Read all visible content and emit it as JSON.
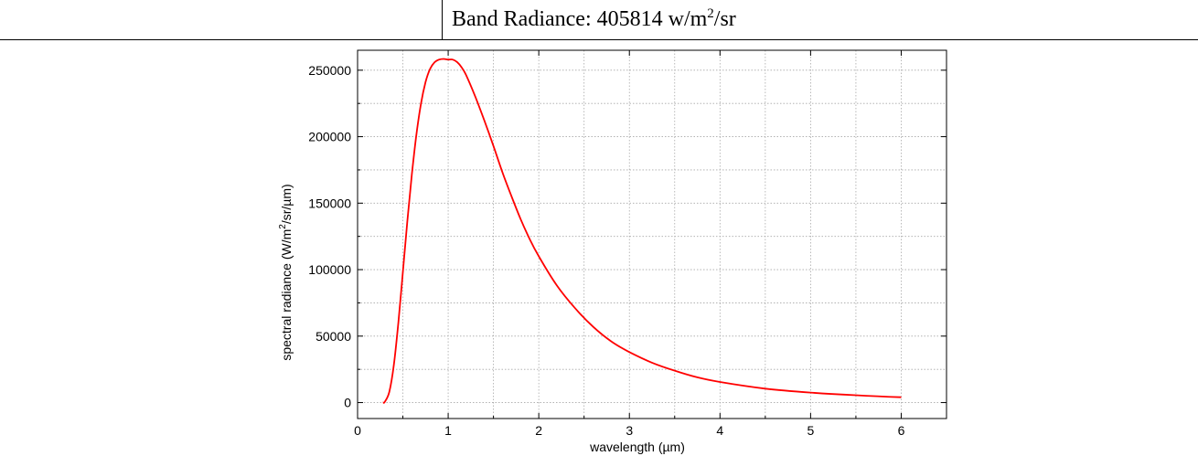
{
  "header": {
    "band_prefix": "Band Radiance: ",
    "band_value": "405814",
    "band_unit_before_sup": " w/m",
    "band_unit_sup": "2",
    "band_unit_after_sup": "/sr"
  },
  "chart_data": {
    "type": "line",
    "xlabel": "wavelength (µm)",
    "ylabel_parts": [
      "spectral radiance (W/m",
      "2",
      "/sr/µm)"
    ],
    "xlim": [
      0,
      6.5
    ],
    "ylim": [
      -12000,
      265000
    ],
    "xticks": [
      0,
      1,
      2,
      3,
      4,
      5,
      6
    ],
    "xtick_labels": [
      "0",
      "1",
      "2",
      "3",
      "4",
      "5",
      "6"
    ],
    "yticks": [
      0,
      50000,
      100000,
      150000,
      200000,
      250000
    ],
    "ytick_labels": [
      "0",
      "50000",
      "100000",
      "150000",
      "200000",
      "250000"
    ],
    "grid": true,
    "series": [
      {
        "color": "#ff0000",
        "x": [
          0.28,
          0.3,
          0.35,
          0.4,
          0.45,
          0.5,
          0.55,
          0.6,
          0.65,
          0.7,
          0.75,
          0.8,
          0.85,
          0.9,
          0.95,
          1.0,
          1.05,
          1.1,
          1.15,
          1.2,
          1.3,
          1.4,
          1.5,
          1.6,
          1.7,
          1.8,
          1.9,
          2.0,
          2.2,
          2.4,
          2.6,
          2.8,
          3.0,
          3.25,
          3.5,
          3.75,
          4.0,
          4.5,
          5.0,
          5.5,
          6.0
        ],
        "y": [
          0,
          500,
          8000,
          28000,
          60000,
          98000,
          137000,
          172000,
          202000,
          225000,
          241000,
          251000,
          256000,
          258000,
          258500,
          258000,
          258000,
          256000,
          252000,
          246000,
          230000,
          212000,
          193000,
          173000,
          155000,
          138000,
          123000,
          110000,
          88000,
          71000,
          57000,
          46000,
          38000,
          30000,
          24000,
          19000,
          15500,
          10500,
          7500,
          5500,
          4000
        ]
      }
    ]
  }
}
